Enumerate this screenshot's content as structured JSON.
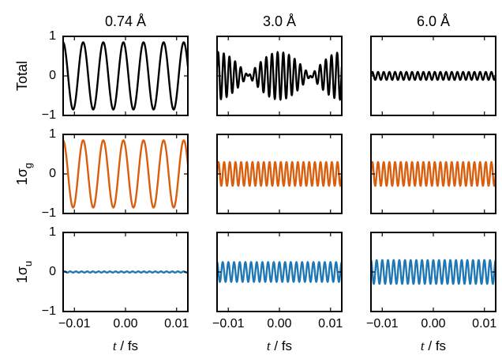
{
  "chart_data": {
    "type": "line",
    "layout": "3x3 grid of subplots, shared axes",
    "columns": [
      "0.74 Å",
      "3.0 Å",
      "6.0 Å"
    ],
    "rows": [
      {
        "label": "Total",
        "color": "#000000"
      },
      {
        "label": "1σ",
        "subscript": "g",
        "color": "#d95f0e"
      },
      {
        "label": "1σ",
        "subscript": "u",
        "color": "#1f77b4"
      }
    ],
    "xlabel": {
      "italic": "t",
      "rest": " / fs"
    },
    "xlim": [
      -0.0122,
      0.0122
    ],
    "xticks": [
      -0.01,
      0.0,
      0.01
    ],
    "xticklabels": [
      "−0.01",
      "0.00",
      "0.01"
    ],
    "ylim": [
      -1,
      1
    ],
    "yticks": [
      -1,
      0,
      1
    ],
    "yticklabels": [
      "−1",
      "0",
      "1"
    ],
    "grid": false,
    "legend": "none",
    "panels": [
      {
        "row": 0,
        "col": 0,
        "series": "Total",
        "signal": "sine",
        "amplitude": 0.85,
        "cycles_in_window": 6.2,
        "phase": 1.6
      },
      {
        "row": 0,
        "col": 1,
        "series": "Total",
        "signal": "beat (sum of two sines)",
        "amplitudes": [
          0.3,
          0.3
        ],
        "cycles_in_window": [
          21,
          23
        ],
        "peak_envelope": 0.6,
        "phase": 0.4
      },
      {
        "row": 0,
        "col": 2,
        "series": "Total",
        "signal": "sine",
        "amplitude": 0.1,
        "cycles_in_window": 22,
        "phase": 0.0
      },
      {
        "row": 1,
        "col": 0,
        "series": "1σg",
        "signal": "sine",
        "amplitude": 0.85,
        "cycles_in_window": 6.2,
        "phase": 1.6
      },
      {
        "row": 1,
        "col": 1,
        "series": "1σg",
        "signal": "sine",
        "amplitude": 0.3,
        "cycles_in_window": 22,
        "phase": 0.0
      },
      {
        "row": 1,
        "col": 2,
        "series": "1σg",
        "signal": "sine",
        "amplitude": 0.3,
        "cycles_in_window": 22,
        "phase": 0.0
      },
      {
        "row": 2,
        "col": 0,
        "series": "1σu",
        "signal": "sine",
        "amplitude": 0.015,
        "cycles_in_window": 22,
        "phase": 0.0
      },
      {
        "row": 2,
        "col": 1,
        "series": "1σu",
        "signal": "sine",
        "amplitude": 0.25,
        "cycles_in_window": 22,
        "phase": 1.57
      },
      {
        "row": 2,
        "col": 2,
        "series": "1σu",
        "signal": "sine",
        "amplitude": 0.3,
        "cycles_in_window": 22,
        "phase": 1.57
      }
    ]
  }
}
